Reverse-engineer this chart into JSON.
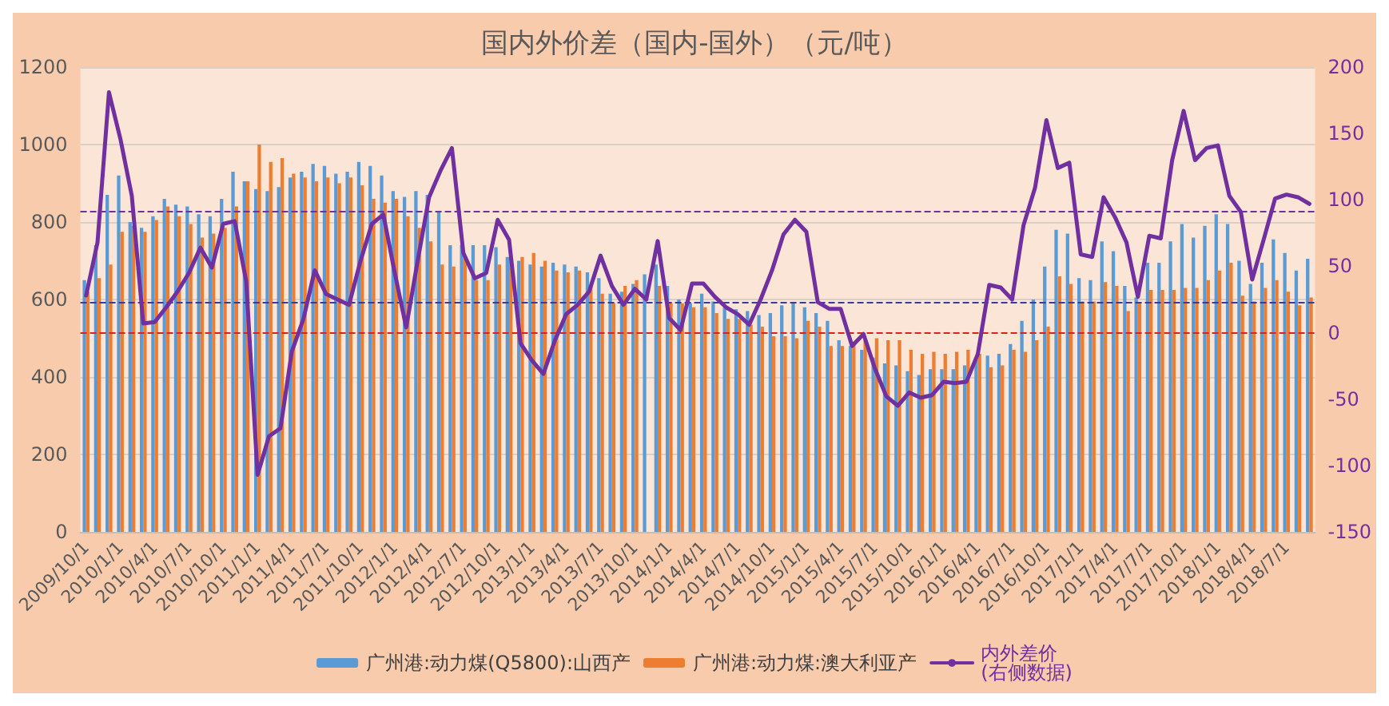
{
  "chart_data": {
    "type": "bar",
    "title": "国内外价差（国内-国外）（元/吨）",
    "categories": [
      "2009/10/1",
      null,
      null,
      "2010/1/1",
      null,
      null,
      "2010/4/1",
      null,
      null,
      "2010/7/1",
      null,
      null,
      "2010/10/1",
      null,
      null,
      "2011/1/1",
      null,
      null,
      "2011/4/1",
      null,
      null,
      "2011/7/1",
      null,
      null,
      "2011/10/1",
      null,
      null,
      "2012/1/1",
      null,
      null,
      "2012/4/1",
      null,
      null,
      "2012/7/1",
      null,
      null,
      "2012/10/1",
      null,
      null,
      "2013/1/1",
      null,
      null,
      "2013/4/1",
      null,
      null,
      "2013/7/1",
      null,
      null,
      "2013/10/1",
      null,
      null,
      "2014/1/1",
      null,
      null,
      "2014/4/1",
      null,
      null,
      "2014/7/1",
      null,
      null,
      "2014/10/1",
      null,
      null,
      "2015/1/1",
      null,
      null,
      "2015/4/1",
      null,
      null,
      "2015/7/1",
      null,
      null,
      "2015/10/1",
      null,
      null,
      "2016/1/1",
      null,
      null,
      "2016/4/1",
      null,
      null,
      "2016/7/1",
      null,
      null,
      "2016/10/1",
      null,
      null,
      "2017/1/1",
      null,
      null,
      "2017/4/1",
      null,
      null,
      "2017/7/1",
      null,
      null,
      "2017/10/1",
      null,
      null,
      "2018/1/1",
      null,
      null,
      "2018/4/1",
      null,
      null,
      "2018/7/1",
      null,
      null
    ],
    "series": [
      {
        "name": "广州港:动力煤(Q5800):山西产",
        "color": "#5b9bd5",
        "values": [
          650,
          740,
          870,
          920,
          800,
          785,
          815,
          860,
          845,
          840,
          820,
          815,
          860,
          930,
          905,
          885,
          880,
          890,
          915,
          930,
          950,
          945,
          925,
          930,
          955,
          945,
          920,
          880,
          865,
          880,
          870,
          825,
          740,
          740,
          740,
          740,
          735,
          710,
          700,
          690,
          685,
          695,
          690,
          685,
          670,
          655,
          615,
          620,
          640,
          665,
          690,
          635,
          600,
          590,
          615,
          595,
          580,
          575,
          570,
          560,
          565,
          585,
          590,
          580,
          565,
          545,
          495,
          480,
          470,
          450,
          435,
          430,
          415,
          405,
          420,
          420,
          420,
          430,
          445,
          455,
          460,
          485,
          545,
          600,
          685,
          780,
          770,
          655,
          650,
          750,
          725,
          635,
          605,
          695,
          695,
          750,
          795,
          760,
          790,
          820,
          795,
          700,
          640,
          695,
          755,
          720,
          675,
          705
        ]
      },
      {
        "name": "广州港:动力煤:澳大利亚产",
        "color": "#ed7d31",
        "values": [
          620,
          655,
          690,
          775,
          790,
          775,
          805,
          840,
          815,
          795,
          760,
          770,
          785,
          840,
          905,
          1000,
          955,
          965,
          925,
          915,
          905,
          915,
          900,
          915,
          895,
          860,
          850,
          860,
          815,
          785,
          750,
          690,
          685,
          705,
          650,
          650,
          690,
          710,
          710,
          720,
          700,
          675,
          670,
          675,
          635,
          615,
          590,
          635,
          650,
          null,
          635,
          590,
          590,
          580,
          580,
          565,
          550,
          550,
          535,
          530,
          505,
          505,
          500,
          545,
          530,
          480,
          480,
          485,
          495,
          500,
          495,
          495,
          470,
          460,
          465,
          460,
          465,
          470,
          460,
          425,
          430,
          470,
          465,
          495,
          530,
          660,
          640,
          595,
          595,
          645,
          635,
          570,
          590,
          625,
          625,
          625,
          630,
          630,
          650,
          675,
          695,
          610,
          595,
          630,
          650,
          620,
          585,
          605
        ]
      },
      {
        "name": "内外差价\n(右侧数据)",
        "type": "line",
        "axis": "y2",
        "color": "#7030a0",
        "values": [
          28,
          68,
          181,
          146,
          103,
          7,
          8,
          19,
          31,
          45,
          64,
          49,
          82,
          84,
          39,
          -107,
          -78,
          -72,
          -14,
          10,
          47,
          29,
          25,
          21,
          54,
          82,
          89,
          45,
          4,
          54,
          102,
          122,
          139,
          60,
          41,
          45,
          85,
          70,
          -8,
          -21,
          -31,
          -6,
          14,
          21,
          31,
          58,
          35,
          21,
          33,
          25,
          69,
          11,
          2,
          37,
          37,
          27,
          19,
          14,
          6,
          25,
          47,
          74,
          85,
          76,
          23,
          18,
          18,
          -10,
          -1,
          -27,
          -48,
          -55,
          -45,
          -49,
          -47,
          -37,
          -38,
          -37,
          -16,
          36,
          34,
          25,
          81,
          109,
          160,
          124,
          128,
          59,
          57,
          102,
          87,
          68,
          27,
          73,
          71,
          130,
          167,
          130,
          139,
          141,
          103,
          91,
          40,
          70,
          101,
          104,
          102,
          97
        ]
      }
    ],
    "ylim": [
      0,
      1200
    ],
    "yticks": [
      0,
      200,
      400,
      600,
      800,
      1000,
      1200
    ],
    "y2lim": [
      -150,
      200
    ],
    "y2ticks": [
      -150,
      -100,
      -50,
      0,
      50,
      100,
      150,
      200
    ],
    "ref_lines": [
      {
        "axis": "y2",
        "value": 92,
        "color": "#7030a0",
        "line_style": "dashed"
      },
      {
        "axis": "y2",
        "value": 23,
        "color": "#3a3a9a",
        "line_style": "dashed"
      },
      {
        "axis": "y2",
        "value": 0,
        "color": "#e02020",
        "line_style": "dashed"
      }
    ],
    "grid": "y",
    "legend": "bottom",
    "marker": "none",
    "line_style": "solid"
  }
}
